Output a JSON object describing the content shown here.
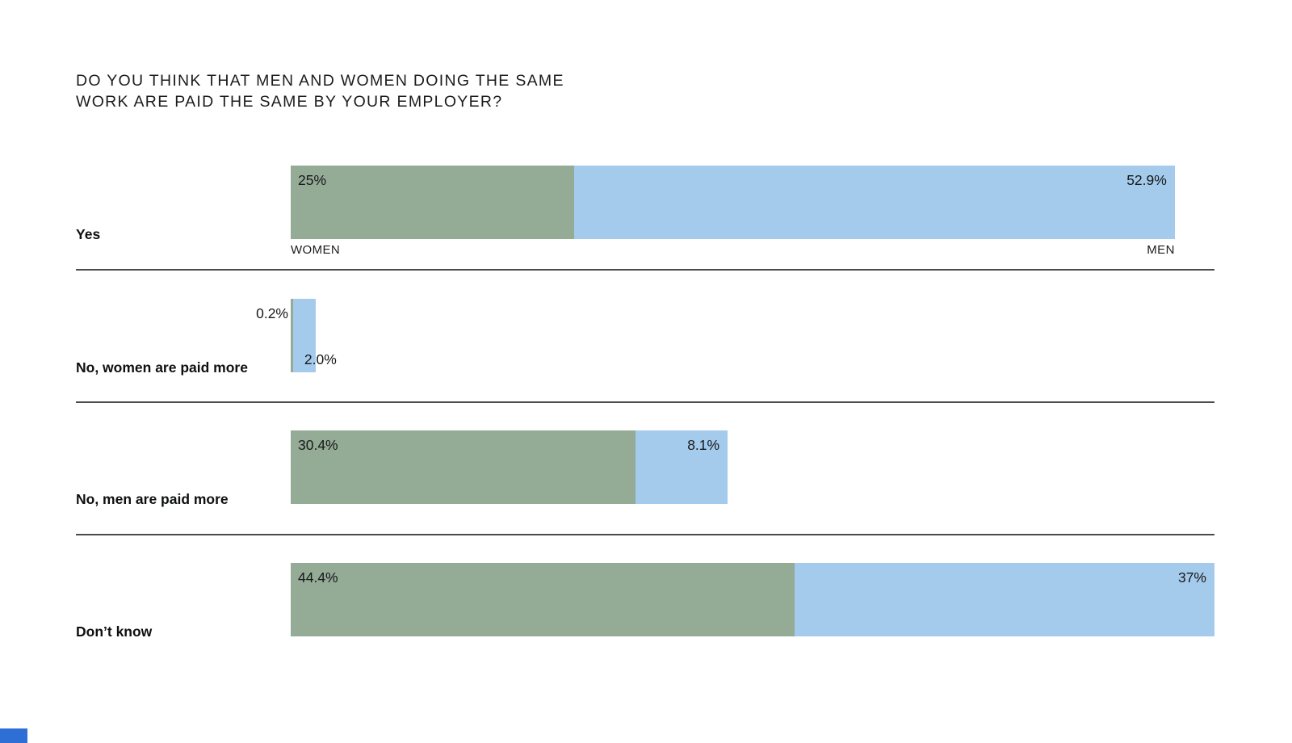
{
  "title": {
    "line1": "DO YOU THINK THAT MEN AND WOMEN DOING THE SAME",
    "line2": "WORK ARE PAID THE SAME BY YOUR EMPLOYER?"
  },
  "legend": {
    "women": "WOMEN",
    "men": "MEN"
  },
  "colors": {
    "women_bar": "#94ab96",
    "men_bar": "#a4cbec",
    "separator": "#4a4b4f",
    "text": "#17181a",
    "accent": "#2e6fd6"
  },
  "chart_data": {
    "type": "bar",
    "orientation": "horizontal-stacked",
    "title": "DO YOU THINK THAT MEN AND WOMEN DOING THE SAME WORK ARE PAID THE SAME BY YOUR EMPLOYER?",
    "categories": [
      "Yes",
      "No, women are paid more",
      "No, men are paid more",
      "Don’t know"
    ],
    "series": [
      {
        "name": "WOMEN",
        "values": [
          25,
          0.2,
          30.4,
          44.4
        ],
        "labels": [
          "25%",
          "0.2%",
          "30.4%",
          "44.4%"
        ]
      },
      {
        "name": "MEN",
        "values": [
          52.9,
          2.0,
          8.1,
          37
        ],
        "labels": [
          "52.9%",
          "2.0%",
          "8.1%",
          "37%"
        ]
      }
    ],
    "value_unit": "%",
    "xlim": [
      0,
      81.4
    ],
    "grid": false,
    "legend_position": "inline-below-first-bar",
    "row_separators": true
  }
}
